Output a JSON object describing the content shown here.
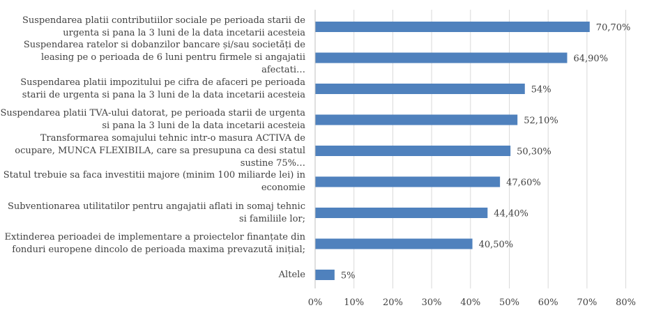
{
  "chart_data": {
    "type": "bar",
    "orientation": "horizontal",
    "title": "",
    "xlabel": "",
    "ylabel": "",
    "categories": [
      "Suspendarea platii contributiilor sociale pe perioada starii de urgenta si pana la 3 luni de la data incetarii acesteia",
      "Suspendarea ratelor si dobanzilor bancare și/sau societăți de leasing pe o perioada de 6 luni pentru firmele si angajatii afectati…",
      "Suspendarea platii impozitului pe cifra de afaceri pe perioada starii de urgenta si  pana la 3 luni de la data incetarii acesteia",
      "Suspendarea platii TVA-ului datorat, pe perioada starii de urgenta si pana la 3 luni de la data incetarii acesteia",
      "Transformarea somajului tehnic intr-o masura ACTIVA de ocupare, MUNCA FLEXIBILA, care sa presupuna ca desi statul sustine 75%…",
      "Statul trebuie sa faca investitii majore (minim 100 miliarde lei) in economie",
      "Subventionarea utilitatilor pentru angajatii aflati in somaj tehnic si familiile lor;",
      "Extinderea perioadei de implementare a proiectelor finanțate din fonduri europene dincolo de perioada maxima prevazută inițial;",
      "Altele"
    ],
    "values": [
      70.7,
      64.9,
      54,
      52.1,
      50.3,
      47.6,
      44.4,
      40.5,
      5
    ],
    "data_labels": [
      "70,70%",
      "64,90%",
      "54%",
      "52,10%",
      "50,30%",
      "47,60%",
      "44,40%",
      "40,50%",
      "5%"
    ],
    "xlim": [
      0,
      80
    ],
    "x_ticks": [
      "0%",
      "10%",
      "20%",
      "30%",
      "40%",
      "50%",
      "60%",
      "70%",
      "80%"
    ],
    "grid": true,
    "legend": "none",
    "bar_color": "#4f81bd",
    "grid_color": "#d9d9d9",
    "text_color": "#404040"
  }
}
